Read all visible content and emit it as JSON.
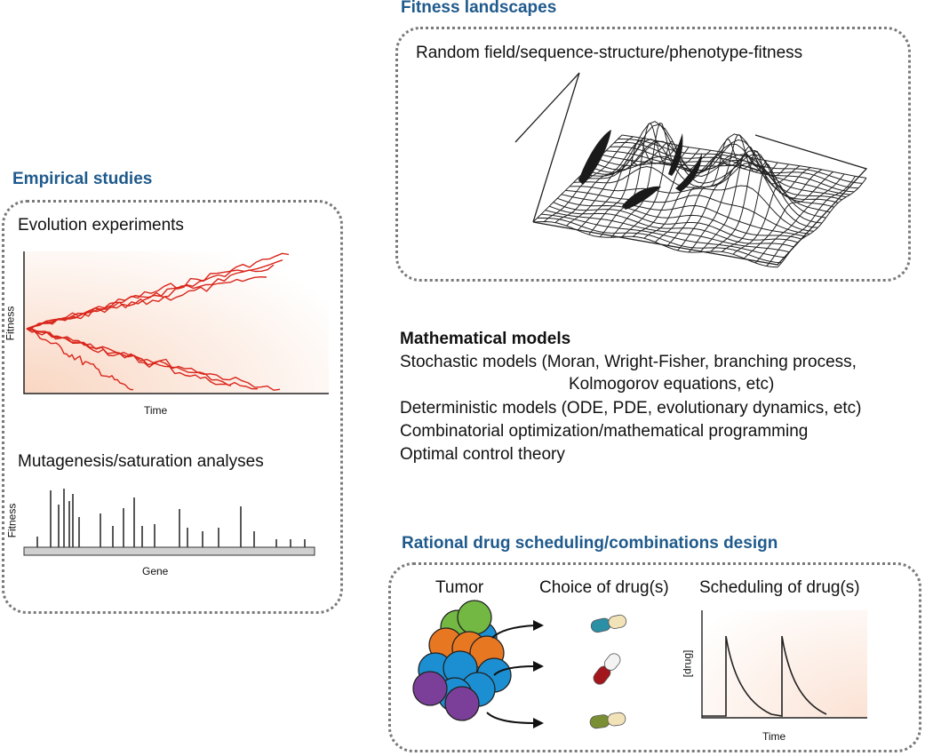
{
  "fitness_landscapes": {
    "heading": "Fitness landscapes",
    "subtitle": "Random field/sequence-structure/phenotype-fitness"
  },
  "empirical_studies": {
    "heading": "Empirical studies",
    "evolution_title": "Evolution experiments",
    "evolution_ylabel": "Fitness",
    "evolution_xlabel": "Time",
    "mutagenesis_title": "Mutagenesis/saturation analyses",
    "mutagenesis_ylabel": "Fitness",
    "mutagenesis_xlabel": "Gene",
    "colors": {
      "trajectory": "#d9261c",
      "gradient": "#fbe2d4"
    }
  },
  "mathematical_models": {
    "title": "Mathematical models",
    "lines": [
      "Stochastic models (Moran, Wright-Fisher, branching process,",
      "Kolmogorov equations, etc)",
      "Deterministic models (ODE, PDE, evolutionary dynamics, etc)",
      "Combinatorial optimization/mathematical programming",
      "Optimal control theory"
    ]
  },
  "drug_design": {
    "heading": "Rational drug scheduling/combinations design",
    "tumor_label": "Tumor",
    "choice_label": "Choice of drug(s)",
    "scheduling_label": "Scheduling of drug(s)",
    "plot_ylabel": "[drug]",
    "plot_xlabel": "Time",
    "cell_colors": [
      "#e87722",
      "#73b843",
      "#1b8fd2",
      "#7b3f99"
    ]
  }
}
